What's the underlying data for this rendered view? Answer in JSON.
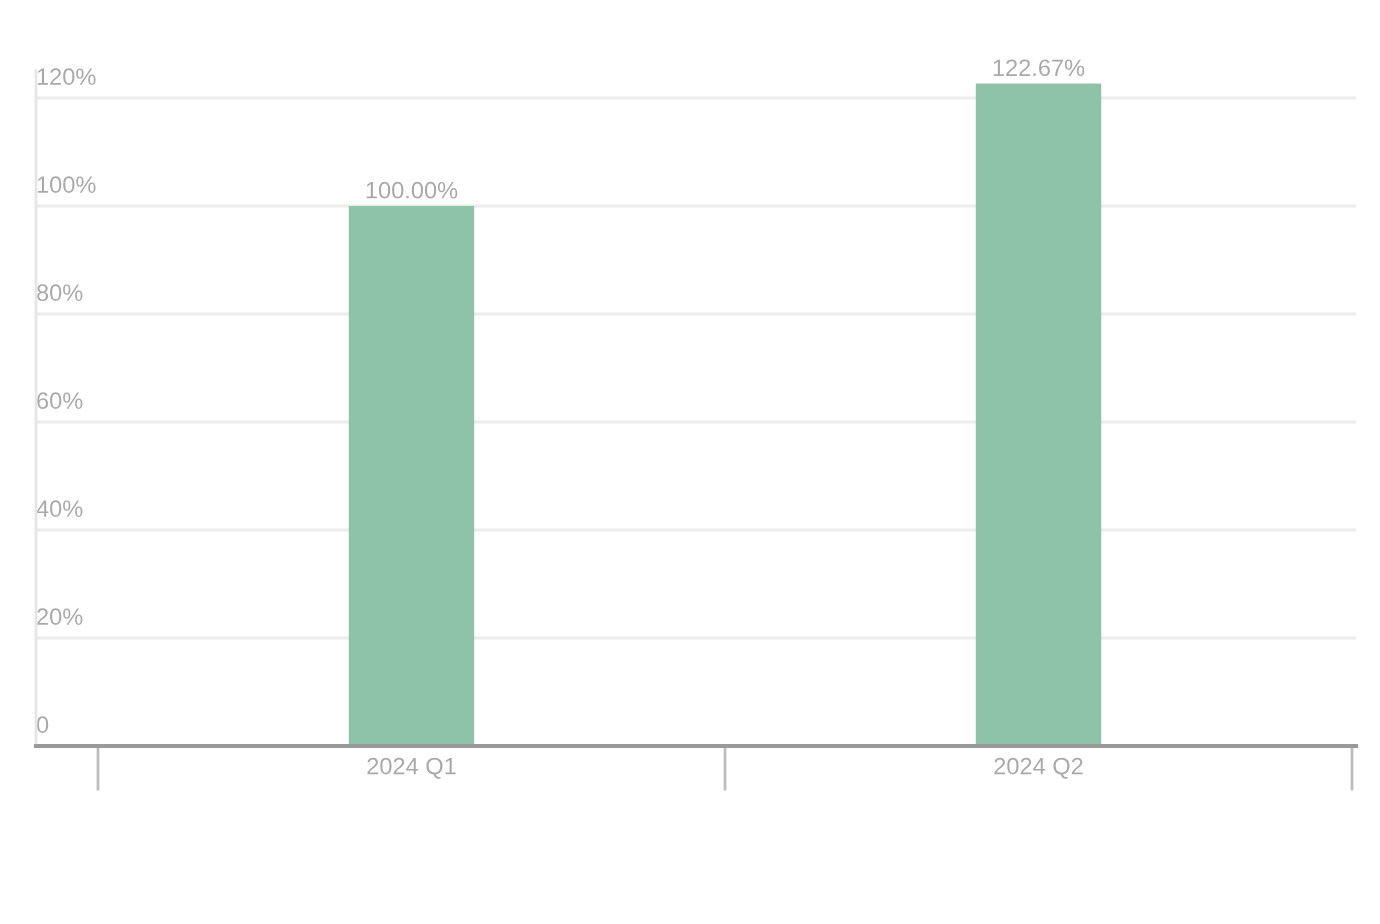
{
  "chart_data": {
    "type": "bar",
    "categories": [
      "2024 Q1",
      "2024 Q2"
    ],
    "values": [
      100.0,
      122.67
    ],
    "color": "#8fc3a8",
    "value_labels": [
      "100.00%",
      "122.67%"
    ],
    "ylim": [
      0,
      125
    ],
    "yticks": [
      0,
      {
        "value": 20,
        "label": "20%"
      },
      {
        "value": 40,
        "label": "40%"
      },
      {
        "value": 60,
        "label": "60%"
      },
      {
        "value": 80,
        "label": "80%"
      },
      {
        "value": 100,
        "label": "100%"
      },
      {
        "value": 120,
        "label": "120%"
      }
    ],
    "grid": "y"
  }
}
